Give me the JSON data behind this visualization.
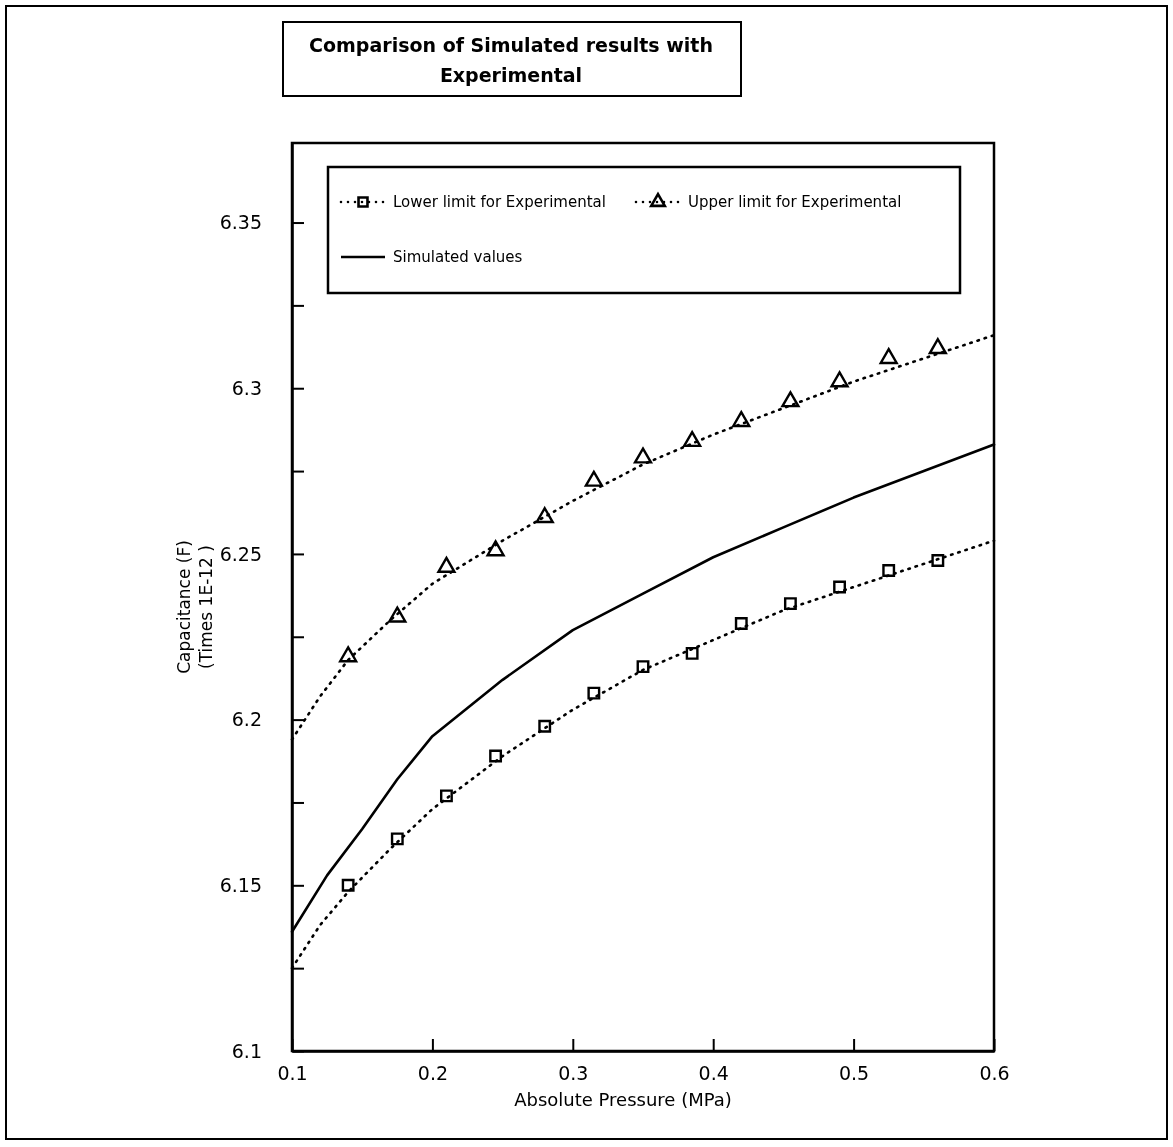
{
  "chart_data": {
    "type": "line",
    "title": "Comparison of Simulated results with Experimental",
    "xlabel": "Absolute Pressure (MPa)",
    "ylabel": "Capacitance (F)\n(Times 1E-12 )",
    "xlim": [
      0.1,
      0.6
    ],
    "xticks": [
      0.1,
      0.2,
      0.3,
      0.4,
      0.5,
      0.6
    ],
    "ylim": [
      6.1,
      6.374
    ],
    "yticks": [
      6.1,
      {
        "value": 6.125,
        "label": null
      },
      6.15,
      {
        "value": 6.175,
        "label": null
      },
      6.2,
      {
        "value": 6.225,
        "label": null
      },
      6.25,
      {
        "value": 6.275,
        "label": null
      },
      6.3,
      {
        "value": 6.325,
        "label": null
      },
      6.35
    ],
    "grid": false,
    "legend": "top",
    "series": [
      {
        "name": "Lower limit for Experimental",
        "type": "scatter",
        "marker": "square",
        "color": "#000000",
        "x": [
          0.14,
          0.175,
          0.21,
          0.245,
          0.28,
          0.315,
          0.35,
          0.385,
          0.42,
          0.455,
          0.49,
          0.525,
          0.56
        ],
        "values": [
          6.15,
          6.164,
          6.177,
          6.189,
          6.198,
          6.208,
          6.216,
          6.22,
          6.229,
          6.235,
          6.24,
          6.245,
          6.248
        ]
      },
      {
        "name": "Upper limit for Experimental",
        "type": "scatter",
        "marker": "triangle",
        "color": "#000000",
        "x": [
          0.14,
          0.175,
          0.21,
          0.245,
          0.28,
          0.315,
          0.35,
          0.385,
          0.42,
          0.455,
          0.49,
          0.525,
          0.56
        ],
        "values": [
          6.219,
          6.231,
          6.246,
          6.251,
          6.261,
          6.272,
          6.279,
          6.284,
          6.29,
          6.296,
          6.302,
          6.309,
          6.312
        ]
      },
      {
        "name": "Simulated values",
        "line_style": "solid",
        "marker": "none",
        "color": "#000000",
        "x": [
          0.1,
          0.125,
          0.15,
          0.175,
          0.2,
          0.25,
          0.3,
          0.35,
          0.4,
          0.45,
          0.5,
          0.55,
          0.6
        ],
        "values": [
          6.136,
          6.153,
          6.167,
          6.182,
          6.195,
          6.212,
          6.227,
          6.238,
          6.249,
          6.258,
          6.267,
          6.275,
          6.283
        ]
      },
      {
        "type": "line",
        "line_style": "dotted",
        "marker": "none",
        "color": "#000000",
        "x": [
          0.1,
          0.12,
          0.14,
          0.17,
          0.2,
          0.25,
          0.3,
          0.35,
          0.4,
          0.45,
          0.5,
          0.55,
          0.6
        ],
        "values": [
          6.125,
          6.138,
          6.148,
          6.161,
          6.173,
          6.189,
          6.203,
          6.215,
          6.224,
          6.233,
          6.24,
          6.247,
          6.254
        ]
      },
      {
        "type": "line",
        "line_style": "dotted",
        "marker": "none",
        "color": "#000000",
        "x": [
          0.1,
          0.12,
          0.14,
          0.17,
          0.2,
          0.25,
          0.3,
          0.35,
          0.4,
          0.45,
          0.5,
          0.55,
          0.6
        ],
        "values": [
          6.194,
          6.207,
          6.218,
          6.23,
          6.241,
          6.254,
          6.266,
          6.277,
          6.286,
          6.294,
          6.302,
          6.309,
          6.316
        ]
      }
    ]
  }
}
